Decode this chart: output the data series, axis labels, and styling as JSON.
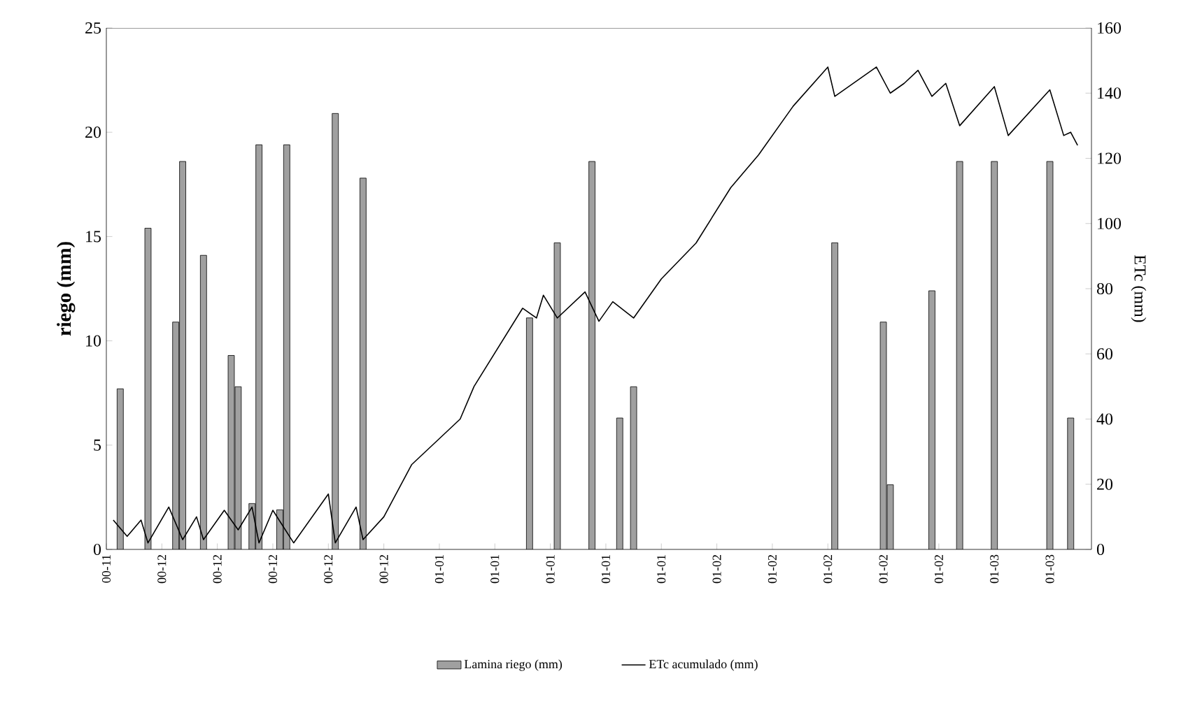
{
  "chart_data": {
    "type": "bar",
    "ylabel": "riego (mm)",
    "y2label": "ETc (mm)",
    "legend": "bottom",
    "ylim": [
      0,
      25
    ],
    "yticks": [
      0,
      5,
      10,
      15,
      20,
      25
    ],
    "y2lim": [
      0,
      160
    ],
    "y2ticks": [
      0,
      20,
      40,
      60,
      80,
      100,
      120,
      140,
      160
    ],
    "categories": [
      "00-11",
      null,
      null,
      null,
      null,
      null,
      null,
      null,
      "00-12",
      null,
      null,
      null,
      null,
      null,
      null,
      null,
      "00-12",
      null,
      null,
      null,
      null,
      null,
      null,
      null,
      "00-12",
      null,
      null,
      null,
      null,
      null,
      null,
      null,
      "00-12",
      null,
      null,
      null,
      null,
      null,
      null,
      null,
      "00-12",
      null,
      null,
      null,
      null,
      null,
      null,
      null,
      "01-01",
      null,
      null,
      null,
      null,
      null,
      null,
      null,
      "01-01",
      null,
      null,
      null,
      null,
      null,
      null,
      null,
      "01-01",
      null,
      null,
      null,
      null,
      null,
      null,
      null,
      "01-01",
      null,
      null,
      null,
      null,
      null,
      null,
      null,
      "01-01",
      null,
      null,
      null,
      null,
      null,
      null,
      null,
      "01-02",
      null,
      null,
      null,
      null,
      null,
      null,
      null,
      "01-02",
      null,
      null,
      null,
      null,
      null,
      null,
      null,
      "01-02",
      null,
      null,
      null,
      null,
      null,
      null,
      null,
      "01-02",
      null,
      null,
      null,
      null,
      null,
      null,
      null,
      "01-02",
      null,
      null,
      null,
      null,
      null,
      null,
      null,
      "01-03",
      null,
      null,
      null,
      null,
      null,
      null,
      null,
      "01-03",
      null,
      null,
      null,
      null,
      null,
      null
    ],
    "series": [
      {
        "name": "Lamina riego (mm)",
        "color": "#a0a0a0",
        "values": [
          null,
          null,
          7.7,
          null,
          null,
          null,
          15.4,
          null,
          null,
          null,
          10.9,
          18.6,
          null,
          null,
          14.1,
          null,
          null,
          null,
          9.3,
          7.8,
          null,
          2.2,
          19.4,
          null,
          null,
          1.9,
          19.4,
          null,
          null,
          null,
          null,
          null,
          null,
          20.9,
          null,
          null,
          null,
          17.8,
          null,
          null,
          null,
          null,
          null,
          null,
          null,
          null,
          null,
          null,
          null,
          null,
          null,
          null,
          null,
          null,
          null,
          null,
          null,
          null,
          null,
          null,
          null,
          11.1,
          null,
          null,
          null,
          14.7,
          null,
          null,
          null,
          null,
          18.6,
          null,
          null,
          null,
          6.3,
          null,
          7.8,
          null,
          null,
          null,
          null,
          null,
          null,
          null,
          null,
          null,
          null,
          null,
          null,
          null,
          null,
          null,
          null,
          null,
          null,
          null,
          null,
          null,
          null,
          null,
          null,
          null,
          null,
          null,
          null,
          14.7,
          null,
          null,
          null,
          null,
          null,
          null,
          10.9,
          3.1,
          null,
          null,
          null,
          null,
          null,
          12.4,
          null,
          null,
          null,
          18.6,
          null,
          null,
          null,
          null,
          18.6,
          null,
          null,
          null,
          null,
          null,
          null,
          null,
          18.6,
          null,
          null,
          6.3,
          null,
          null,
          null
        ]
      },
      {
        "name": "ETc acumulado (mm)",
        "type": "line",
        "axis": "y2",
        "color": "#000000",
        "values": [
          null,
          9,
          null,
          4,
          null,
          9,
          2,
          null,
          null,
          13,
          null,
          3,
          null,
          10,
          3,
          null,
          null,
          12,
          null,
          6,
          null,
          13,
          2,
          null,
          12,
          null,
          null,
          2,
          null,
          null,
          null,
          null,
          17,
          2,
          null,
          null,
          13,
          3,
          null,
          null,
          10,
          null,
          null,
          null,
          26,
          null,
          null,
          null,
          34,
          null,
          null,
          40,
          null,
          50,
          null,
          null,
          null,
          null,
          null,
          null,
          74,
          null,
          71,
          78,
          null,
          71,
          null,
          null,
          null,
          79,
          null,
          70,
          null,
          76,
          null,
          null,
          71,
          null,
          null,
          null,
          83,
          null,
          null,
          null,
          null,
          94,
          null,
          null,
          null,
          null,
          111,
          null,
          null,
          null,
          121,
          null,
          null,
          null,
          null,
          136,
          null,
          null,
          null,
          null,
          148,
          139,
          null,
          null,
          null,
          null,
          null,
          148,
          null,
          140,
          null,
          143,
          null,
          147,
          null,
          139,
          null,
          143,
          null,
          130,
          null,
          null,
          null,
          null,
          142,
          null,
          127,
          null,
          null,
          null,
          null,
          null,
          141,
          null,
          127,
          128,
          124,
          null,
          null
        ]
      }
    ]
  }
}
